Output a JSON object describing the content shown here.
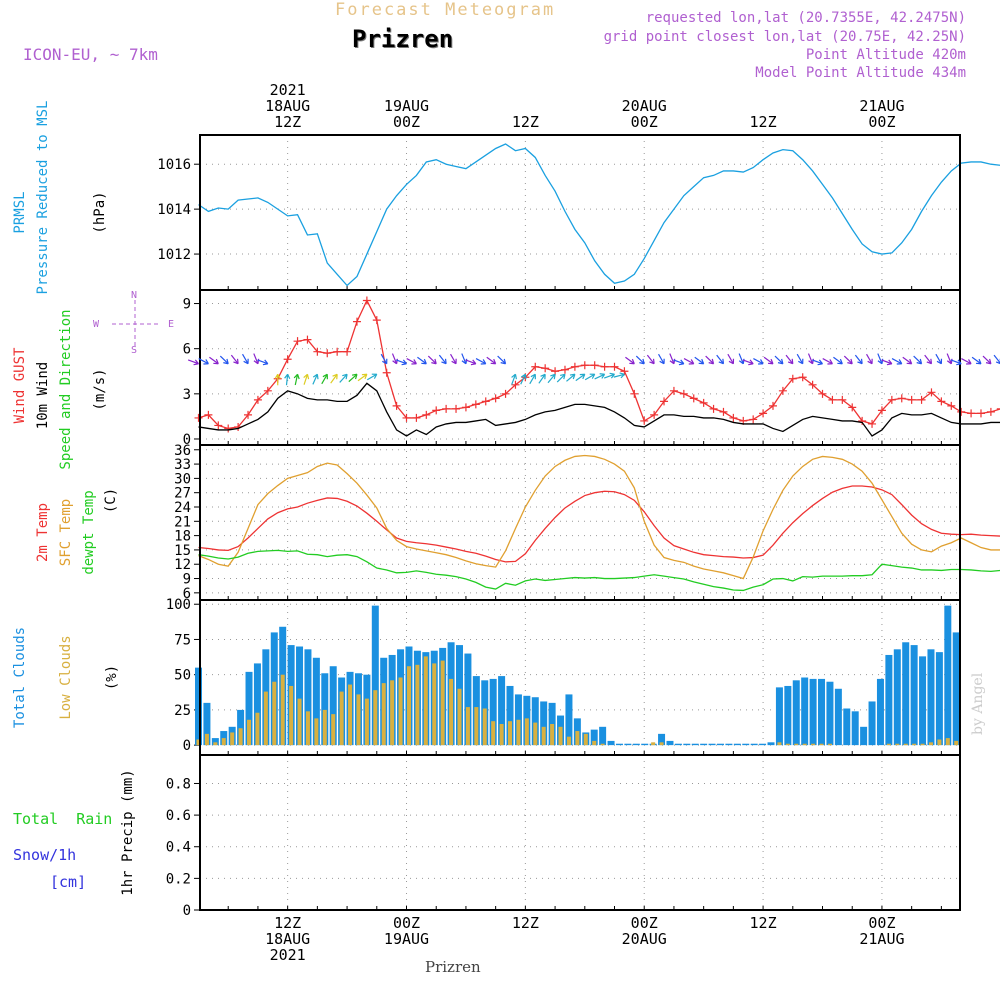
{
  "header": {
    "title": "Forecast Meteogram",
    "location": "Prizren",
    "model": "ICON-EU, ~ 7km",
    "requested": "requested lon,lat (20.7355E, 42.2475N)",
    "gridpoint": "grid point closest lon,lat (20.75E, 42.25N)",
    "point_alt": "Point Altitude 420m",
    "model_alt": "Model Point Altitude 434m",
    "footer": "Prizren",
    "credit": "by Angel",
    "compass": {
      "n": "N",
      "s": "S",
      "w": "W",
      "e": "E"
    }
  },
  "colors": {
    "pressure": "#1aa0e0",
    "gust": "#ee3333",
    "wind": "#000000",
    "t2m": "#ee3333",
    "sfc": "#e0a030",
    "dew": "#22cc22",
    "total_clouds": "#1a90e0",
    "low_clouds": "#d8b040",
    "rain": "#22cc22",
    "snow": "#3333dd",
    "meta": "#aa55cc",
    "title": "#e0c080"
  },
  "time_axis": {
    "hours_per_step": 1,
    "start_label": "2021-08-18 03Z",
    "top_labels": [
      {
        "hour": 9,
        "lines": [
          "2021",
          "18AUG",
          "12Z"
        ]
      },
      {
        "hour": 21,
        "lines": [
          "19AUG",
          "00Z"
        ]
      },
      {
        "hour": 33,
        "lines": [
          "12Z"
        ]
      },
      {
        "hour": 45,
        "lines": [
          "20AUG",
          "00Z"
        ]
      },
      {
        "hour": 57,
        "lines": [
          "12Z"
        ]
      },
      {
        "hour": 69,
        "lines": [
          "21AUG",
          "00Z"
        ]
      }
    ],
    "bottom_labels": [
      {
        "hour": 9,
        "lines": [
          "12Z",
          "18AUG",
          "2021"
        ]
      },
      {
        "hour": 21,
        "lines": [
          "00Z",
          "19AUG"
        ]
      },
      {
        "hour": 33,
        "lines": [
          "12Z"
        ]
      },
      {
        "hour": 45,
        "lines": [
          "00Z",
          "20AUG"
        ]
      },
      {
        "hour": 57,
        "lines": [
          "12Z"
        ]
      },
      {
        "hour": 69,
        "lines": [
          "00Z",
          "21AUG"
        ]
      }
    ]
  },
  "chart_data": [
    {
      "type": "line",
      "title": "PRMSL Pressure Reduced to MSL",
      "ylabel_lines": [
        "PRMSL",
        "Pressure Reduced to MSL"
      ],
      "unit": "(hPa)",
      "yticks": [
        1012,
        1014,
        1016
      ],
      "ylim": [
        1010.4,
        1017.3
      ],
      "series": [
        {
          "name": "PRMSL",
          "values": [
            1014.2,
            1013.9,
            1014.05,
            1014.0,
            1014.4,
            1014.45,
            1014.5,
            1014.3,
            1014.0,
            1013.7,
            1013.75,
            1012.85,
            1012.9,
            1011.6,
            1011.1,
            1010.6,
            1011.0,
            1012.0,
            1013.0,
            1014.0,
            1014.6,
            1015.1,
            1015.5,
            1016.1,
            1016.2,
            1016.0,
            1015.9,
            1015.8,
            1016.1,
            1016.4,
            1016.7,
            1016.9,
            1016.6,
            1016.7,
            1016.3,
            1015.5,
            1014.8,
            1013.9,
            1013.1,
            1012.5,
            1011.7,
            1011.1,
            1010.7,
            1010.8,
            1011.1,
            1011.8,
            1012.6,
            1013.4,
            1014.0,
            1014.6,
            1015.0,
            1015.4,
            1015.5,
            1015.7,
            1015.7,
            1015.65,
            1015.85,
            1016.2,
            1016.5,
            1016.65,
            1016.6,
            1016.2,
            1015.7,
            1015.1,
            1014.5,
            1013.8,
            1013.1,
            1012.45,
            1012.1,
            1012.0,
            1012.05,
            1012.5,
            1013.1,
            1013.9,
            1014.6,
            1015.2,
            1015.7,
            1016.05,
            1016.1,
            1016.1,
            1016.0,
            1015.95,
            1016.05,
            1016.3,
            1016.6,
            1017.0
          ]
        }
      ]
    },
    {
      "type": "line",
      "title": "Wind GUST, 10m Wind Speed and Direction",
      "ylabel_lines": [
        "Wind GUST",
        "10m Wind",
        "Speed and Direction"
      ],
      "unit": "(m/s)",
      "yticks": [
        0,
        3,
        6,
        9
      ],
      "ylim": [
        -0.4,
        9.9
      ],
      "series": [
        {
          "name": "Wind GUST",
          "values": [
            1.4,
            1.6,
            0.9,
            0.7,
            0.8,
            1.6,
            2.6,
            3.2,
            4.0,
            5.3,
            6.5,
            6.6,
            5.8,
            5.7,
            5.8,
            5.8,
            7.8,
            9.2,
            7.9,
            4.4,
            2.2,
            1.4,
            1.4,
            1.6,
            1.9,
            2.0,
            2.0,
            2.1,
            2.3,
            2.5,
            2.7,
            3.0,
            3.6,
            4.1,
            4.8,
            4.7,
            4.5,
            4.6,
            4.8,
            4.9,
            4.9,
            4.8,
            4.8,
            4.5,
            3.0,
            1.2,
            1.6,
            2.5,
            3.2,
            3.0,
            2.7,
            2.4,
            2.0,
            1.8,
            1.4,
            1.2,
            1.3,
            1.7,
            2.2,
            3.2,
            4.0,
            4.1,
            3.6,
            3.0,
            2.6,
            2.6,
            2.1,
            1.2,
            1.0,
            1.9,
            2.6,
            2.7,
            2.6,
            2.6,
            3.1,
            2.5,
            2.2,
            1.8,
            1.7,
            1.7,
            1.8,
            2.0,
            2.4,
            2.3
          ]
        },
        {
          "name": "10m Wind",
          "values": [
            0.8,
            0.7,
            0.6,
            0.6,
            0.7,
            1.0,
            1.3,
            1.8,
            2.7,
            3.2,
            3.0,
            2.7,
            2.6,
            2.6,
            2.5,
            2.5,
            2.9,
            3.7,
            3.2,
            1.8,
            0.6,
            0.2,
            0.6,
            0.3,
            0.8,
            1.0,
            1.1,
            1.1,
            1.2,
            1.3,
            0.9,
            1.0,
            1.1,
            1.3,
            1.6,
            1.8,
            1.9,
            2.1,
            2.3,
            2.3,
            2.2,
            2.1,
            1.8,
            1.4,
            0.9,
            0.8,
            1.2,
            1.6,
            1.6,
            1.5,
            1.5,
            1.4,
            1.4,
            1.3,
            1.1,
            1.0,
            1.0,
            1.0,
            0.7,
            0.5,
            0.9,
            1.3,
            1.5,
            1.4,
            1.3,
            1.2,
            1.2,
            1.1,
            0.2,
            0.6,
            1.4,
            1.7,
            1.6,
            1.6,
            1.7,
            1.4,
            1.1,
            1.0,
            1.0,
            1.0,
            1.1,
            1.1,
            1.0,
            0.6
          ]
        }
      ]
    },
    {
      "type": "line",
      "title": "2m Temp, SFC Temp, dewpt Temp",
      "ylabel_lines": [
        "2m Temp",
        "SFC Temp",
        "dewpt Temp"
      ],
      "unit": "(C)",
      "yticks": [
        6,
        9,
        12,
        15,
        18,
        21,
        24,
        27,
        30,
        33,
        36
      ],
      "ylim": [
        4.5,
        37
      ],
      "series": [
        {
          "name": "2m Temp",
          "values": [
            15.5,
            15.3,
            15.0,
            14.9,
            15.7,
            17.5,
            19.5,
            21.5,
            22.8,
            23.6,
            24.0,
            24.8,
            25.4,
            25.9,
            25.8,
            25.2,
            24.2,
            22.7,
            21.0,
            19.2,
            17.5,
            16.8,
            16.5,
            16.3,
            16.0,
            15.6,
            15.2,
            14.7,
            14.3,
            13.7,
            13.0,
            12.5,
            12.6,
            14.2,
            17.0,
            19.5,
            21.8,
            23.8,
            25.2,
            26.4,
            27.0,
            27.3,
            27.2,
            26.6,
            25.4,
            23.0,
            20.1,
            17.5,
            15.9,
            15.2,
            14.5,
            14.0,
            13.8,
            13.6,
            13.5,
            13.3,
            13.4,
            13.9,
            16.0,
            18.5,
            20.7,
            22.6,
            24.3,
            25.8,
            27.1,
            27.9,
            28.4,
            28.4,
            28.2,
            27.6,
            26.6,
            24.5,
            22.3,
            20.5,
            19.3,
            18.5,
            18.3,
            18.2,
            18.3,
            18.1,
            18.0,
            17.9,
            17.8,
            17.7
          ]
        },
        {
          "name": "SFC Temp",
          "values": [
            13.8,
            13.0,
            12.0,
            11.6,
            14.5,
            19.5,
            24.5,
            26.8,
            28.5,
            30.0,
            30.6,
            31.2,
            32.5,
            33.2,
            32.8,
            31.0,
            29.0,
            26.5,
            23.8,
            19.5,
            17.0,
            15.7,
            15.2,
            14.8,
            14.4,
            14.0,
            13.4,
            12.7,
            12.1,
            11.7,
            11.4,
            14.8,
            19.5,
            24.0,
            27.5,
            30.5,
            32.5,
            33.8,
            34.6,
            34.8,
            34.6,
            34.0,
            33.0,
            31.5,
            28.0,
            21.0,
            16.0,
            13.4,
            12.8,
            12.4,
            11.6,
            11.0,
            10.6,
            10.2,
            9.6,
            9.0,
            13.5,
            19.0,
            23.5,
            27.5,
            30.5,
            32.5,
            34.0,
            34.6,
            34.4,
            34.0,
            33.0,
            31.5,
            29.0,
            25.5,
            22.0,
            18.5,
            16.2,
            15.0,
            14.6,
            15.8,
            16.5,
            17.5,
            16.5,
            15.5,
            15.0,
            15.0,
            15.3,
            17.5
          ]
        },
        {
          "name": "dewpt Temp",
          "values": [
            14.0,
            13.7,
            13.3,
            13.1,
            13.5,
            14.3,
            14.7,
            14.8,
            14.9,
            14.7,
            14.8,
            14.1,
            14.0,
            13.6,
            13.9,
            14.0,
            13.6,
            12.5,
            11.2,
            10.8,
            10.2,
            10.3,
            10.6,
            10.3,
            9.9,
            9.7,
            9.4,
            8.9,
            8.2,
            7.2,
            6.8,
            8.0,
            7.6,
            8.5,
            8.9,
            8.6,
            8.8,
            9.0,
            9.2,
            9.1,
            9.2,
            9.0,
            9.0,
            9.1,
            9.2,
            9.5,
            9.8,
            9.5,
            9.2,
            8.9,
            8.3,
            7.8,
            7.3,
            7.0,
            6.6,
            6.5,
            7.2,
            7.7,
            8.9,
            9.0,
            8.5,
            9.4,
            9.3,
            9.5,
            9.5,
            9.5,
            9.6,
            9.6,
            9.8,
            12.0,
            11.7,
            11.4,
            11.2,
            10.8,
            10.8,
            10.7,
            10.9,
            10.9,
            10.8,
            10.6,
            10.5,
            10.7,
            10.8,
            12.0
          ]
        }
      ]
    },
    {
      "type": "bar",
      "title": "Total Clouds, Low Clouds",
      "ylabel_lines": [
        "Total Clouds",
        "Low Clouds"
      ],
      "unit": "(%)",
      "yticks": [
        0,
        25,
        50,
        75,
        100
      ],
      "ylim": [
        -7,
        103
      ],
      "series": [
        {
          "name": "Total Clouds",
          "values": [
            55,
            30,
            5,
            10,
            13,
            25,
            52,
            58,
            68,
            80,
            84,
            71,
            70,
            68,
            62,
            51,
            56,
            48,
            52,
            51,
            50,
            99,
            62,
            64,
            68,
            70,
            67,
            66,
            67,
            69,
            73,
            71,
            65,
            49,
            46,
            47,
            49,
            42,
            36,
            35,
            34,
            31,
            30,
            21,
            36,
            19,
            9,
            11,
            13,
            3,
            1,
            1,
            1,
            1,
            1,
            8,
            3,
            1,
            1,
            1,
            1,
            1,
            1,
            1,
            1,
            1,
            1,
            1,
            2,
            41,
            42,
            46,
            48,
            47,
            47,
            45,
            40,
            26,
            24,
            13,
            31,
            47,
            64,
            68,
            73,
            71,
            63,
            68,
            66,
            99,
            80
          ]
        },
        {
          "name": "Low Clouds",
          "values": [
            4,
            8,
            2,
            5,
            9,
            12,
            18,
            23,
            38,
            45,
            50,
            42,
            33,
            24,
            19,
            25,
            22,
            38,
            43,
            36,
            33,
            39,
            44,
            46,
            48,
            56,
            57,
            63,
            58,
            60,
            47,
            40,
            27,
            27,
            26,
            17,
            15,
            17,
            18,
            19,
            16,
            13,
            15,
            13,
            6,
            10,
            8,
            3,
            1,
            0,
            0,
            0,
            0,
            0,
            2,
            2,
            0,
            0,
            0,
            0,
            0,
            0,
            0,
            0,
            0,
            0,
            0,
            0,
            0,
            2,
            1,
            1,
            1,
            1,
            1,
            1,
            0,
            0,
            0,
            0,
            0,
            0,
            1,
            1,
            1,
            1,
            1,
            2,
            4,
            5,
            3
          ]
        }
      ]
    },
    {
      "type": "bar",
      "title": "1hr Precip",
      "ylabel_lines": [
        "1hr Precip (mm)"
      ],
      "side_labels": [
        "Total  Rain",
        "Snow/1h",
        "[cm]"
      ],
      "unit": "",
      "yticks": [
        0,
        0.2,
        0.4,
        0.6,
        0.8
      ],
      "ylim": [
        0,
        0.98
      ],
      "series": [
        {
          "name": "Total Rain",
          "values": []
        }
      ]
    }
  ]
}
